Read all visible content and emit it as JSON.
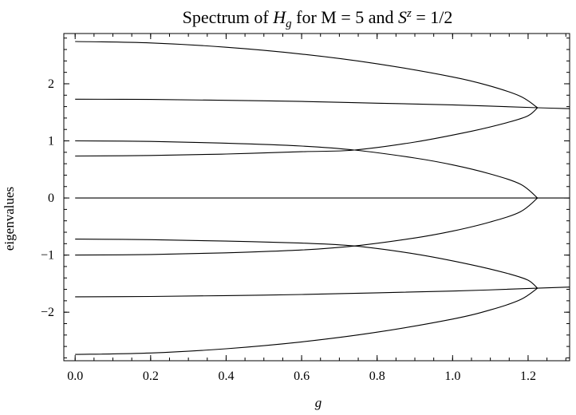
{
  "chart_data": {
    "type": "line",
    "title": {
      "prefix": "Spectrum of ",
      "H": "H",
      "H_sub": "g",
      "mid": " for M = 5 and ",
      "S": "S",
      "S_sup": "z",
      "suffix": " = 1/2"
    },
    "xlabel": "g",
    "ylabel": "eigenvalues",
    "xlim": [
      -0.03,
      1.31
    ],
    "ylim": [
      -2.85,
      2.88
    ],
    "xticks": [
      0.0,
      0.2,
      0.4,
      0.6,
      0.8,
      1.0,
      1.2
    ],
    "xtick_labels": [
      "0.0",
      "0.2",
      "0.4",
      "0.6",
      "0.8",
      "1.0",
      "1.2"
    ],
    "yticks": [
      -2,
      -1,
      0,
      1,
      2
    ],
    "ytick_labels": [
      "−2",
      "−1",
      "0",
      "1",
      "2"
    ],
    "grid": false,
    "series": [
      {
        "values": [
          [
            0.0,
            2.74
          ],
          [
            0.2,
            2.715
          ],
          [
            0.4,
            2.64
          ],
          [
            0.6,
            2.52
          ],
          [
            0.8,
            2.35
          ],
          [
            1.0,
            2.12
          ],
          [
            1.1,
            1.96
          ],
          [
            1.18,
            1.78
          ],
          [
            1.225,
            1.58
          ]
        ]
      },
      {
        "values": [
          [
            0.0,
            1.73
          ],
          [
            0.2,
            1.725
          ],
          [
            0.4,
            1.71
          ],
          [
            0.6,
            1.69
          ],
          [
            0.8,
            1.66
          ],
          [
            1.0,
            1.63
          ],
          [
            1.225,
            1.58
          ],
          [
            1.31,
            1.565
          ]
        ]
      },
      {
        "values": [
          [
            0.0,
            0.735
          ],
          [
            0.2,
            0.745
          ],
          [
            0.4,
            0.77
          ],
          [
            0.6,
            0.81
          ],
          [
            0.74,
            0.84
          ],
          [
            0.9,
            0.98
          ],
          [
            1.05,
            1.17
          ],
          [
            1.15,
            1.33
          ],
          [
            1.2,
            1.44
          ],
          [
            1.225,
            1.58
          ]
        ]
      },
      {
        "values": [
          [
            0.0,
            1.0
          ],
          [
            0.2,
            0.99
          ],
          [
            0.4,
            0.96
          ],
          [
            0.6,
            0.91
          ],
          [
            0.74,
            0.84
          ],
          [
            0.9,
            0.7
          ],
          [
            1.0,
            0.58
          ],
          [
            1.1,
            0.42
          ],
          [
            1.18,
            0.24
          ],
          [
            1.225,
            0.0
          ]
        ]
      },
      {
        "values": [
          [
            0.0,
            0.0
          ],
          [
            1.31,
            0.0
          ]
        ]
      },
      {
        "values": [
          [
            0.0,
            -0.72
          ],
          [
            0.2,
            -0.73
          ],
          [
            0.4,
            -0.755
          ],
          [
            0.6,
            -0.79
          ],
          [
            0.74,
            -0.84
          ],
          [
            0.9,
            -0.98
          ],
          [
            1.05,
            -1.17
          ],
          [
            1.15,
            -1.33
          ],
          [
            1.2,
            -1.44
          ],
          [
            1.225,
            -1.58
          ]
        ]
      },
      {
        "values": [
          [
            0.0,
            -1.0
          ],
          [
            0.2,
            -0.99
          ],
          [
            0.4,
            -0.96
          ],
          [
            0.6,
            -0.91
          ],
          [
            0.74,
            -0.84
          ],
          [
            0.9,
            -0.7
          ],
          [
            1.0,
            -0.58
          ],
          [
            1.1,
            -0.42
          ],
          [
            1.18,
            -0.24
          ],
          [
            1.225,
            0.0
          ]
        ]
      },
      {
        "values": [
          [
            0.0,
            -1.73
          ],
          [
            0.2,
            -1.725
          ],
          [
            0.4,
            -1.71
          ],
          [
            0.6,
            -1.69
          ],
          [
            0.8,
            -1.66
          ],
          [
            1.0,
            -1.63
          ],
          [
            1.225,
            -1.58
          ],
          [
            1.31,
            -1.56
          ]
        ]
      },
      {
        "values": [
          [
            0.0,
            -2.74
          ],
          [
            0.2,
            -2.715
          ],
          [
            0.4,
            -2.64
          ],
          [
            0.6,
            -2.52
          ],
          [
            0.8,
            -2.35
          ],
          [
            1.0,
            -2.12
          ],
          [
            1.1,
            -1.96
          ],
          [
            1.18,
            -1.78
          ],
          [
            1.225,
            -1.58
          ]
        ]
      }
    ]
  }
}
